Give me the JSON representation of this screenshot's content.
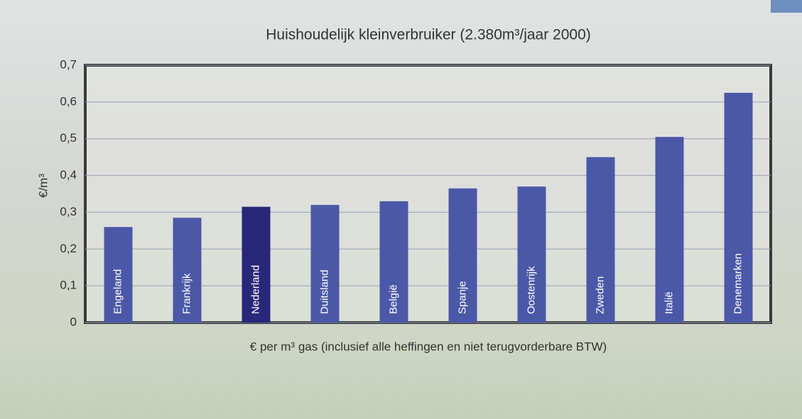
{
  "chart_data": {
    "type": "bar",
    "title": "Huishoudelijk kleinverbruiker (2.380m³/jaar 2000)",
    "y_label": "€/m³",
    "x_label": "€ per m³ gas (inclusief alle heffingen en niet terugvorderbare BTW)",
    "categories": [
      "Engeland",
      "Frankrijk",
      "Nederland",
      "Duitsland",
      "België",
      "Spanje",
      "Oostenrijk",
      "Zweden",
      "Italië",
      "Denemarken"
    ],
    "values": [
      0.26,
      0.285,
      0.315,
      0.32,
      0.33,
      0.365,
      0.37,
      0.45,
      0.505,
      0.625
    ],
    "colors": [
      "#4b58a8",
      "#4b58a8",
      "#28287a",
      "#4b58a8",
      "#4b58a8",
      "#4b58a8",
      "#4b58a8",
      "#4b58a8",
      "#4b58a8",
      "#4b58a8"
    ],
    "ylim": [
      0,
      0.7
    ],
    "yticks": [
      0,
      {
        "value": 0.1,
        "label": "0,1"
      },
      {
        "value": 0.2,
        "label": "0,2"
      },
      {
        "value": 0.3,
        "label": "0,3"
      },
      {
        "value": 0.4,
        "label": "0,4"
      },
      {
        "value": 0.5,
        "label": "0,5"
      },
      {
        "value": 0.6,
        "label": "0,6"
      },
      {
        "value": 0.7,
        "label": "0,7"
      }
    ],
    "grid": true
  }
}
